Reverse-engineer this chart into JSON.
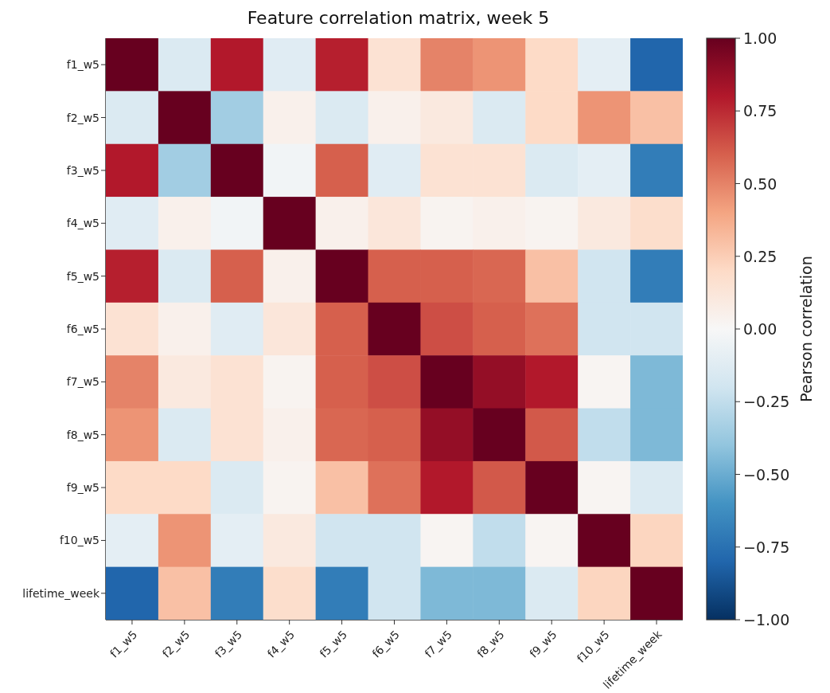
{
  "chart_data": {
    "type": "heatmap",
    "title": "Feature correlation matrix, week 5",
    "clabel": "Pearson correlation",
    "categories": [
      "f1_w5",
      "f2_w5",
      "f3_w5",
      "f4_w5",
      "f5_w5",
      "f6_w5",
      "f7_w5",
      "f8_w5",
      "f9_w5",
      "f10_w5",
      "lifetime_week"
    ],
    "y_categories": [
      "f1_w5",
      "f2_w5",
      "f3_w5",
      "f4_w5",
      "f5_w5",
      "f6_w5",
      "f7_w5",
      "f8_w5",
      "f9_w5",
      "f10_w5",
      "lifetime_week"
    ],
    "cells": [
      [
        1,
        -0.15,
        0.8,
        -0.12,
        0.78,
        0.15,
        0.5,
        0.45,
        0.2,
        -0.1,
        -0.8
      ],
      [
        -0.15,
        1,
        -0.35,
        0.05,
        -0.15,
        0.05,
        0.1,
        -0.15,
        0.2,
        0.45,
        0.3
      ],
      [
        0.8,
        -0.35,
        1,
        -0.03,
        0.6,
        -0.12,
        0.15,
        0.15,
        -0.15,
        -0.1,
        -0.7
      ],
      [
        -0.12,
        0.05,
        -0.03,
        1,
        0.05,
        0.12,
        0.03,
        0.05,
        0.03,
        0.1,
        0.18
      ],
      [
        0.78,
        -0.15,
        0.6,
        0.05,
        1,
        0.6,
        0.6,
        0.58,
        0.3,
        -0.2,
        -0.7
      ],
      [
        0.15,
        0.05,
        -0.12,
        0.12,
        0.6,
        1,
        0.65,
        0.6,
        0.55,
        -0.2,
        -0.2
      ],
      [
        0.5,
        0.1,
        0.15,
        0.03,
        0.6,
        0.65,
        1,
        0.88,
        0.8,
        0.02,
        -0.45
      ],
      [
        0.45,
        -0.15,
        0.15,
        0.05,
        0.58,
        0.6,
        0.88,
        1,
        0.62,
        -0.25,
        -0.45
      ],
      [
        0.2,
        0.2,
        -0.15,
        0.03,
        0.3,
        0.55,
        0.8,
        0.62,
        1,
        0.02,
        -0.15
      ],
      [
        -0.1,
        0.45,
        -0.1,
        0.1,
        -0.2,
        -0.2,
        0.02,
        -0.25,
        0.02,
        1,
        0.22
      ],
      [
        -0.8,
        0.3,
        -0.7,
        0.18,
        -0.7,
        -0.2,
        -0.45,
        -0.45,
        -0.15,
        0.22,
        1
      ]
    ],
    "clim": [
      -1,
      1
    ],
    "cticks": [
      {
        "value": -1,
        "label": "−1.00"
      },
      {
        "value": -0.75,
        "label": "−0.75"
      },
      {
        "value": -0.5,
        "label": "−0.50"
      },
      {
        "value": -0.25,
        "label": "−0.25"
      },
      {
        "value": 0,
        "label": "0.00"
      },
      {
        "value": 0.25,
        "label": "0.25"
      },
      {
        "value": 0.5,
        "label": "0.50"
      },
      {
        "value": 0.75,
        "label": "0.75"
      },
      {
        "value": 1,
        "label": "1.00"
      }
    ]
  }
}
